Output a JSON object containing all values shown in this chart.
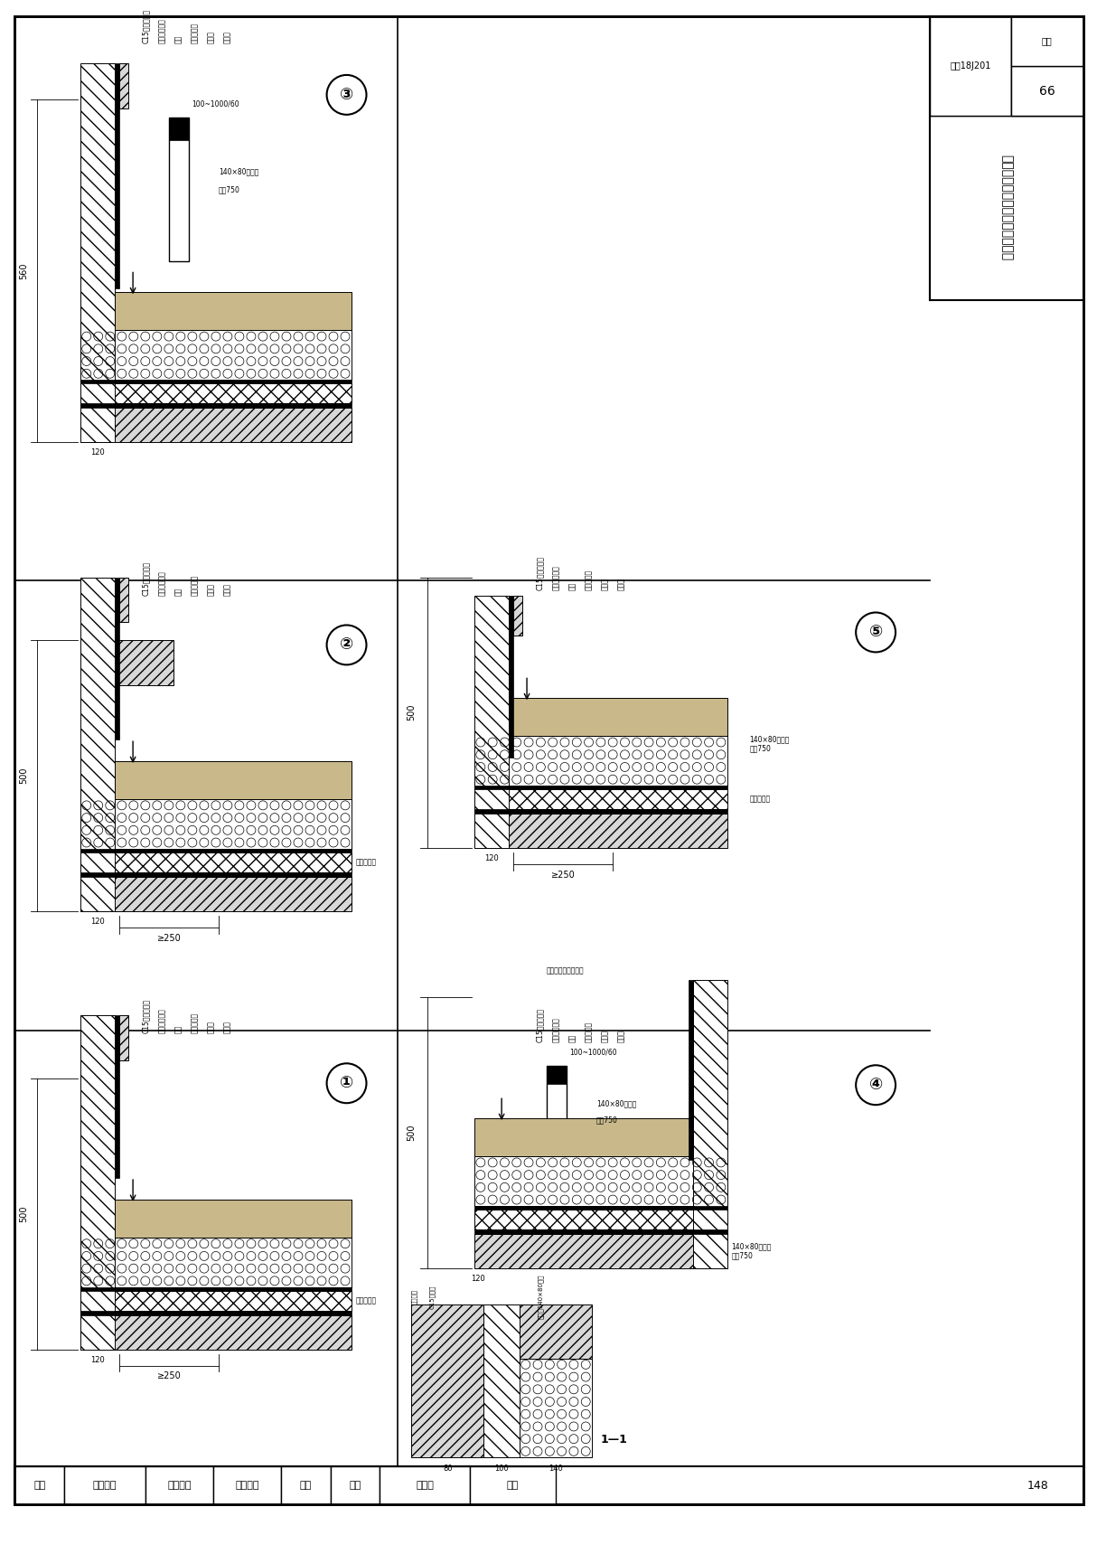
{
  "page_bg": "#ffffff",
  "border_color": "#000000",
  "title_text": "种植屋面立墙泛水及种植土挡墙",
  "subtitle_right_top": "西南18J201",
  "subtitle_right_page": "页次",
  "page_num": "66",
  "bottom_bar_labels": [
    "阶段",
    "编制单位",
    "专业负责",
    "审图负责",
    "比例",
    "地区",
    "项目名",
    "编制"
  ],
  "bottom_num": "148",
  "diagram_labels": [
    "①",
    "②",
    "③",
    "④",
    "⑤"
  ]
}
